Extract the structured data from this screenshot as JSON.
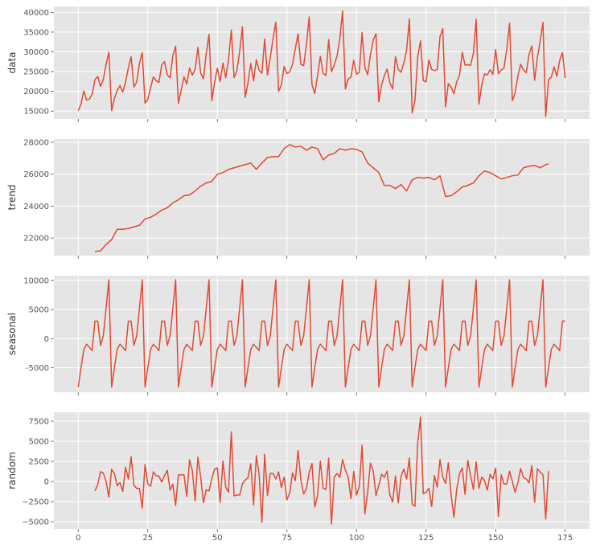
{
  "colors": {
    "line": "#E24A33",
    "panel": "#E5E5E5",
    "grid": "#FFFFFF",
    "tick_text": "#555555",
    "label_text": "#333333"
  },
  "chart_data": [
    {
      "type": "line",
      "ylabel": "data",
      "xlim": [
        -8.75,
        183.75
      ],
      "ylim": [
        13000,
        41500
      ],
      "yticks": [
        15000,
        20000,
        25000,
        30000,
        35000,
        40000
      ],
      "x_start": 0,
      "values": [
        15100,
        16800,
        20100,
        17800,
        18000,
        19300,
        22980,
        23765,
        21250,
        22920,
        26800,
        29920,
        15120,
        18195,
        20180,
        21460,
        19810,
        22285,
        25910,
        28720,
        21070,
        22340,
        27140,
        29800,
        17000,
        17940,
        20860,
        23650,
        22720,
        22225,
        26680,
        27545,
        24150,
        23430,
        29060,
        31430,
        16930,
        20355,
        23630,
        21865,
        25890,
        24115,
        25540,
        31130,
        24650,
        23180,
        29620,
        34430,
        17630,
        22295,
        25840,
        22480,
        27150,
        23430,
        27960,
        35520,
        23460,
        25210,
        30010,
        36340,
        18470,
        22130,
        27050,
        22650,
        28010,
        25350,
        24600,
        33255,
        24140,
        28525,
        33300,
        37510,
        20000,
        21590,
        26300,
        24495,
        24940,
        26795,
        30800,
        34555,
        26800,
        26525,
        31800,
        38840,
        21640,
        19480,
        23990,
        28820,
        24570,
        24000,
        33100,
        24950,
        26700,
        28900,
        33320,
        40370,
        20610,
        23100,
        23610,
        27865,
        24360,
        24775,
        34920,
        26020,
        24210,
        29280,
        32940,
        34590,
        17320,
        21600,
        23970,
        25630,
        22110,
        20600,
        28790,
        25575,
        24820,
        27150,
        30460,
        38330,
        14520,
        17625,
        28810,
        32795,
        22730,
        22385,
        27940,
        25585,
        25220,
        25505,
        33820,
        35900,
        16060,
        21965,
        21110,
        19375,
        22400,
        23970,
        29890,
        26630,
        26770,
        26545,
        29650,
        38225,
        16740,
        21600,
        24450,
        24130,
        25500,
        24260,
        30560,
        24460,
        25380,
        25890,
        30690,
        37230,
        17600,
        19585,
        23960,
        26845,
        25380,
        24710,
        29330,
        31495,
        22810,
        28515,
        32770,
        37460,
        13640,
        22930,
        23600,
        26200,
        23800,
        27800,
        29800,
        23400
      ]
    },
    {
      "type": "line",
      "ylabel": "trend",
      "xlim": [
        -8.75,
        183.75
      ],
      "ylim": [
        20900,
        28200
      ],
      "yticks": [
        22000,
        24000,
        26000,
        28000
      ],
      "x_start": 6,
      "values": [
        21150,
        21175,
        21200,
        21400,
        21600,
        21750,
        21900,
        22225,
        22550,
        22550,
        22550,
        22575,
        22600,
        22650,
        22700,
        22750,
        22800,
        23000,
        23200,
        23250,
        23300,
        23400,
        23500,
        23625,
        23750,
        23825,
        23900,
        24050,
        24200,
        24300,
        24400,
        24525,
        24650,
        24675,
        24700,
        24825,
        24950,
        25100,
        25250,
        25350,
        25450,
        25500,
        25550,
        25775,
        26000,
        26050,
        26100,
        26200,
        26300,
        26350,
        26400,
        26450,
        26500,
        26550,
        26600,
        26650,
        26700,
        26500,
        26300,
        26500,
        26700,
        26875,
        27050,
        27075,
        27100,
        27100,
        27100,
        27350,
        27600,
        27725,
        27850,
        27775,
        27700,
        27725,
        27750,
        27625,
        27500,
        27600,
        27700,
        27650,
        27600,
        27250,
        26900,
        27050,
        27200,
        27250,
        27300,
        27450,
        27600,
        27550,
        27500,
        27550,
        27600,
        27575,
        27550,
        27475,
        27400,
        27050,
        26700,
        26550,
        26400,
        26250,
        26100,
        25700,
        25300,
        25300,
        25300,
        25200,
        25100,
        25225,
        25350,
        25150,
        24950,
        25300,
        25650,
        25725,
        25800,
        25775,
        25750,
        25775,
        25800,
        25725,
        25650,
        25775,
        25900,
        25250,
        24600,
        24625,
        24650,
        24775,
        24900,
        25050,
        25200,
        25250,
        25300,
        25375,
        25450,
        25675,
        25900,
        26050,
        26200,
        26150,
        26100,
        26000,
        25900,
        25800,
        25700,
        25750,
        25800,
        25850,
        25900,
        25925,
        25950,
        26175,
        26400,
        26450,
        26500,
        26525,
        26550,
        26475,
        26400,
        26500,
        26600,
        26650
      ]
    },
    {
      "type": "line",
      "ylabel": "seasonal",
      "xlim": [
        -8.75,
        183.75
      ],
      "ylim": [
        -9200,
        10800
      ],
      "yticks": [
        -5000,
        0,
        5000,
        10000
      ],
      "x_start": 0,
      "period_pattern": [
        -8300,
        -5000,
        -1850,
        -950,
        -1500,
        -2050,
        3000,
        3000,
        -1150,
        450,
        5200,
        10100
      ],
      "length": 176
    },
    {
      "type": "line",
      "ylabel": "random",
      "xlim": [
        -8.75,
        183.75
      ],
      "ylim": [
        -5900,
        8600
      ],
      "yticks": [
        -5000,
        -2500,
        0,
        2500,
        5000,
        7500
      ],
      "ytick_labels": [
        "−5000",
        "−2500",
        "0",
        "2500",
        "5000",
        "7500"
      ],
      "x_start": 6,
      "values": [
        -1170,
        -410,
        1200,
        1070,
        0,
        -1930,
        1520,
        970,
        -520,
        -140,
        -1240,
        1760,
        310,
        3070,
        -480,
        -860,
        -860,
        -3300,
        2100,
        -310,
        -590,
        1200,
        720,
        650,
        -70,
        720,
        1400,
        -1070,
        -340,
        -2970,
        830,
        830,
        830,
        -1860,
        2690,
        1340,
        -2410,
        3030,
        550,
        -2620,
        -1030,
        -1170,
        380,
        1520,
        1690,
        -2620,
        2550,
        -720,
        -1340,
        6170,
        -1790,
        -1690,
        -1690,
        -310,
        170,
        480,
        2200,
        -2900,
        3210,
        900,
        -5100,
        3380,
        -1760,
        1000,
        1000,
        310,
        1200,
        -760,
        550,
        -2280,
        -1410,
        1070,
        100,
        3830,
        200,
        -1550,
        -900,
        1140,
        2240,
        -3170,
        -1760,
        2520,
        -830,
        -1000,
        2900,
        -5300,
        550,
        1000,
        520,
        2720,
        1410,
        550,
        -2140,
        1240,
        -1690,
        -650,
        4520,
        -4030,
        -1340,
        2280,
        1340,
        -1760,
        -480,
        900,
        520,
        1280,
        -1690,
        -2550,
        690,
        -2650,
        620,
        1550,
        310,
        2930,
        -2830,
        -3100,
        4860,
        7970,
        -1520,
        -1340,
        -860,
        -3140,
        720,
        -720,
        2720,
        550,
        -240,
        2340,
        -1690,
        -4450,
        -1000,
        970,
        1690,
        -1620,
        2620,
        720,
        -1000,
        2450,
        -860,
        550,
        100,
        -1070,
        900,
        310,
        1660,
        -4340,
        830,
        -310,
        -310,
        1280,
        0,
        -1340,
        -140,
        1620,
        480,
        310,
        -170,
        1970,
        -2590,
        1590,
        1170,
        860,
        -4660,
        1280
      ]
    }
  ],
  "x_axis": {
    "ticks": [
      0,
      25,
      50,
      75,
      100,
      125,
      150,
      175
    ],
    "tick_labels": [
      "0",
      "25",
      "50",
      "75",
      "100",
      "125",
      "150",
      "175"
    ]
  }
}
